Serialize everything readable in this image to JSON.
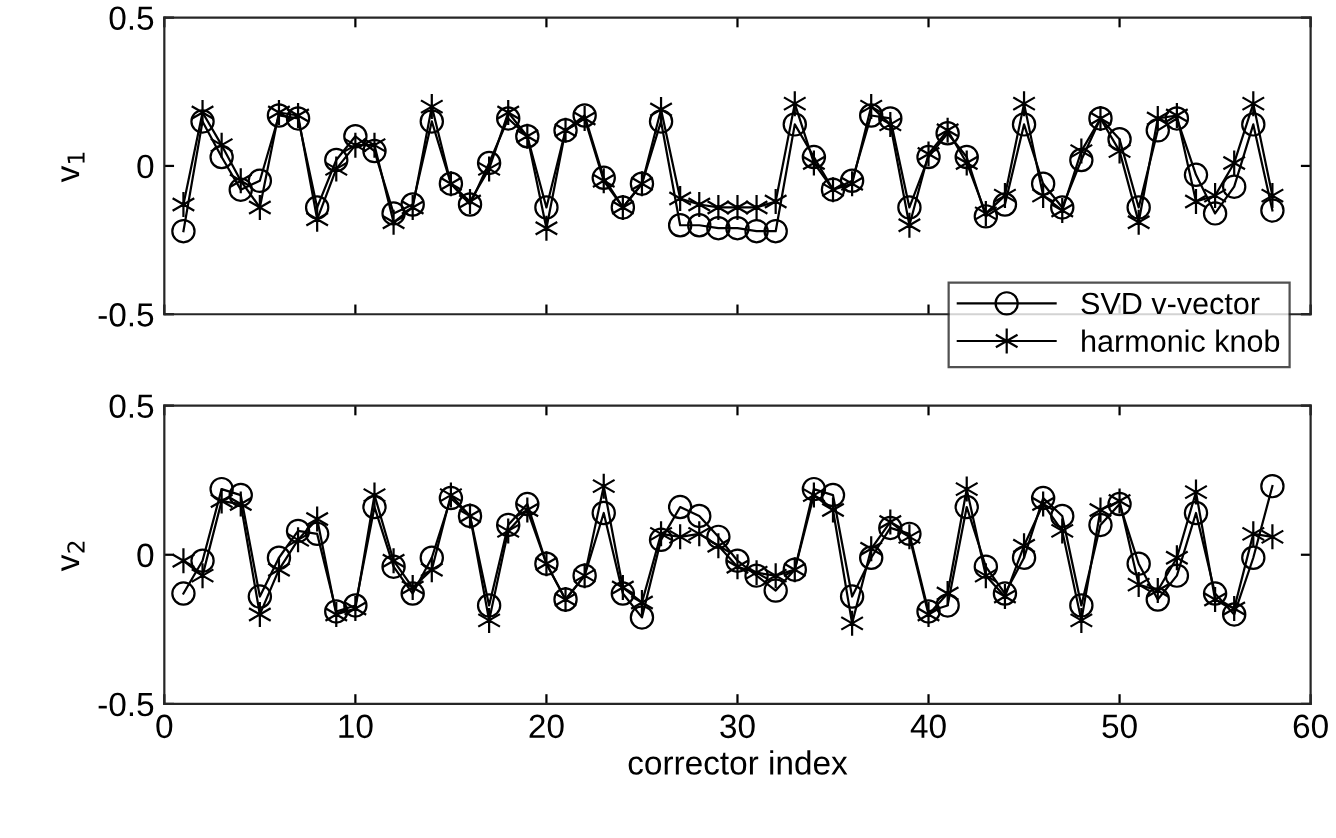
{
  "chart_data": [
    {
      "type": "line",
      "ylabel": "v$_{1}$",
      "x": [
        1,
        2,
        3,
        4,
        5,
        6,
        7,
        8,
        9,
        10,
        11,
        12,
        13,
        14,
        15,
        16,
        17,
        18,
        19,
        20,
        21,
        22,
        23,
        24,
        25,
        26,
        27,
        28,
        29,
        30,
        31,
        32,
        33,
        34,
        35,
        36,
        37,
        38,
        39,
        40,
        41,
        42,
        43,
        44,
        45,
        46,
        47,
        48,
        49,
        50,
        51,
        52,
        53,
        54,
        55,
        56,
        57,
        58
      ],
      "xlim": [
        0,
        60
      ],
      "xticks": [
        0,
        10,
        20,
        30,
        40,
        50,
        60
      ],
      "ylim": [
        -0.5,
        0.5
      ],
      "yticks": [
        -0.5,
        0,
        0.5
      ],
      "tick_labels": "y",
      "grid": false,
      "legend": "bottom right",
      "series": [
        {
          "name": "SVD v-vector",
          "color": "#000000",
          "marker": "circle",
          "values": [
            -0.22,
            0.15,
            0.03,
            -0.08,
            -0.05,
            0.17,
            0.16,
            -0.14,
            0.02,
            0.1,
            0.05,
            -0.16,
            -0.13,
            0.15,
            -0.06,
            -0.13,
            0.01,
            0.16,
            0.1,
            -0.14,
            0.12,
            0.17,
            -0.04,
            -0.14,
            -0.06,
            0.15,
            -0.2,
            -0.2,
            -0.21,
            -0.21,
            -0.22,
            -0.22,
            0.14,
            0.03,
            -0.08,
            -0.05,
            0.17,
            0.16,
            -0.14,
            0.03,
            0.11,
            0.03,
            -0.17,
            -0.13,
            0.14,
            -0.06,
            -0.14,
            0.02,
            0.16,
            0.09,
            -0.14,
            0.12,
            0.16,
            -0.03,
            -0.16,
            -0.07,
            0.14,
            -0.15
          ]
        },
        {
          "name": "harmonic knob",
          "color": "#000000",
          "marker": "cross",
          "values": [
            -0.13,
            0.18,
            0.07,
            -0.05,
            -0.14,
            0.18,
            0.17,
            -0.18,
            -0.01,
            0.07,
            0.07,
            -0.19,
            -0.14,
            0.2,
            -0.06,
            -0.12,
            -0.01,
            0.18,
            0.1,
            -0.21,
            0.12,
            0.16,
            -0.05,
            -0.14,
            -0.06,
            0.19,
            -0.11,
            -0.13,
            -0.14,
            -0.14,
            -0.14,
            -0.12,
            0.21,
            0.01,
            -0.08,
            -0.06,
            0.2,
            0.14,
            -0.2,
            0.04,
            0.12,
            0.01,
            -0.16,
            -0.1,
            0.21,
            -0.1,
            -0.15,
            0.05,
            0.16,
            0.05,
            -0.19,
            0.16,
            0.17,
            -0.12,
            -0.1,
            0.01,
            0.21,
            -0.1
          ]
        }
      ]
    },
    {
      "type": "line",
      "xlabel": "corrector index",
      "ylabel": "v$_{2}$",
      "x": [
        1,
        2,
        3,
        4,
        5,
        6,
        7,
        8,
        9,
        10,
        11,
        12,
        13,
        14,
        15,
        16,
        17,
        18,
        19,
        20,
        21,
        22,
        23,
        24,
        25,
        26,
        27,
        28,
        29,
        30,
        31,
        32,
        33,
        34,
        35,
        36,
        37,
        38,
        39,
        40,
        41,
        42,
        43,
        44,
        45,
        46,
        47,
        48,
        49,
        50,
        51,
        52,
        53,
        54,
        55,
        56,
        57,
        58
      ],
      "xlim": [
        0,
        60
      ],
      "xticks": [
        0,
        10,
        20,
        30,
        40,
        50,
        60
      ],
      "ylim": [
        -0.5,
        0.5
      ],
      "yticks": [
        -0.5,
        0,
        0.5
      ],
      "grid": false,
      "series": [
        {
          "color": "#000000",
          "marker": "circle",
          "values": [
            -0.13,
            -0.02,
            0.22,
            0.2,
            -0.14,
            -0.01,
            0.08,
            0.07,
            -0.19,
            -0.17,
            0.16,
            -0.04,
            -0.13,
            -0.01,
            0.19,
            0.13,
            -0.17,
            0.1,
            0.17,
            -0.03,
            -0.15,
            -0.07,
            0.14,
            -0.13,
            -0.21,
            0.05,
            0.16,
            0.13,
            0.06,
            -0.02,
            -0.07,
            -0.12,
            -0.05,
            0.22,
            0.2,
            -0.14,
            -0.01,
            0.09,
            0.07,
            -0.19,
            -0.17,
            0.16,
            -0.04,
            -0.13,
            -0.01,
            0.19,
            0.13,
            -0.17,
            0.1,
            0.17,
            -0.03,
            -0.15,
            -0.07,
            0.14,
            -0.13,
            -0.2,
            -0.01,
            0.23
          ]
        },
        {
          "color": "#000000",
          "marker": "cross",
          "values": [
            -0.02,
            -0.07,
            0.18,
            0.17,
            -0.2,
            -0.05,
            0.05,
            0.12,
            -0.2,
            -0.18,
            0.2,
            -0.02,
            -0.11,
            -0.05,
            0.2,
            0.13,
            -0.22,
            0.08,
            0.15,
            -0.03,
            -0.15,
            -0.07,
            0.23,
            -0.11,
            -0.16,
            0.07,
            0.06,
            0.07,
            0.03,
            -0.04,
            -0.06,
            -0.07,
            -0.05,
            0.2,
            0.15,
            -0.23,
            0.02,
            0.11,
            0.06,
            -0.2,
            -0.13,
            0.22,
            -0.07,
            -0.14,
            0.03,
            0.17,
            0.08,
            -0.22,
            0.15,
            0.18,
            -0.1,
            -0.12,
            -0.01,
            0.21,
            -0.15,
            -0.18,
            0.07,
            0.06
          ]
        }
      ]
    }
  ]
}
